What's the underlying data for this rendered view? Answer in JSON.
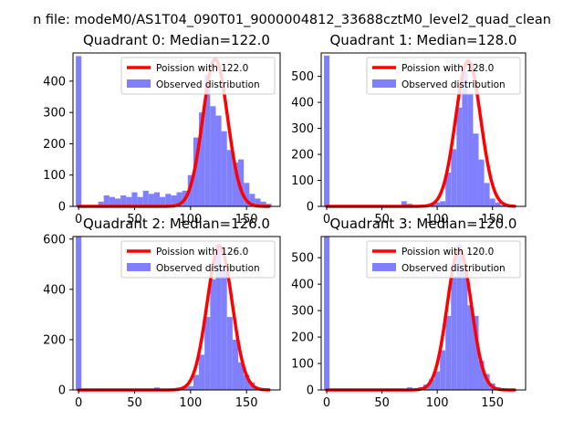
{
  "figure": {
    "suptitle": "n file: modeM0/AS1T04_090T01_9000004812_33688cztM0_level2_quad_clean"
  },
  "colors": {
    "curve": "#ff0000",
    "hist": "#8080ff",
    "axis": "#000000"
  },
  "chart_data": [
    {
      "type": "bar",
      "title": "Quadrant 0: Median=122.0",
      "xlim": [
        -5,
        180
      ],
      "ylim": [
        0,
        490
      ],
      "xticks": [
        0,
        50,
        100,
        150
      ],
      "yticks": [
        0,
        100,
        200,
        300,
        400
      ],
      "median": 122.0,
      "peak": 470,
      "zero_bar": 480,
      "poisson_label": "Poission with 122.0",
      "observed_label": "Observed distribution",
      "legend_position": "top-right",
      "bins": [
        [
          20,
          15
        ],
        [
          25,
          35
        ],
        [
          30,
          30
        ],
        [
          35,
          25
        ],
        [
          40,
          35
        ],
        [
          45,
          30
        ],
        [
          50,
          45
        ],
        [
          55,
          30
        ],
        [
          60,
          50
        ],
        [
          65,
          40
        ],
        [
          70,
          45
        ],
        [
          75,
          30
        ],
        [
          80,
          40
        ],
        [
          85,
          35
        ],
        [
          90,
          45
        ],
        [
          95,
          50
        ],
        [
          100,
          100
        ],
        [
          105,
          220
        ],
        [
          110,
          300
        ],
        [
          115,
          420
        ],
        [
          120,
          320
        ],
        [
          125,
          290
        ],
        [
          130,
          240
        ],
        [
          135,
          180
        ],
        [
          140,
          140
        ],
        [
          145,
          150
        ],
        [
          150,
          75
        ],
        [
          155,
          40
        ],
        [
          160,
          25
        ],
        [
          165,
          15
        ],
        [
          170,
          8
        ]
      ]
    },
    {
      "type": "bar",
      "title": "Quadrant 1: Median=128.0",
      "xlim": [
        -5,
        180
      ],
      "ylim": [
        0,
        590
      ],
      "xticks": [
        0,
        50,
        100,
        150
      ],
      "yticks": [
        0,
        100,
        200,
        300,
        400,
        500
      ],
      "median": 128.0,
      "peak": 560,
      "zero_bar": 580,
      "poisson_label": "Poission with 128.0",
      "observed_label": "Observed distribution",
      "legend_position": "top-right",
      "bins": [
        [
          70,
          20
        ],
        [
          75,
          10
        ],
        [
          80,
          5
        ],
        [
          85,
          5
        ],
        [
          90,
          5
        ],
        [
          95,
          10
        ],
        [
          100,
          15
        ],
        [
          105,
          20
        ],
        [
          110,
          130
        ],
        [
          115,
          220
        ],
        [
          120,
          380
        ],
        [
          125,
          520
        ],
        [
          130,
          430
        ],
        [
          135,
          280
        ],
        [
          140,
          180
        ],
        [
          145,
          90
        ],
        [
          150,
          30
        ],
        [
          155,
          15
        ],
        [
          160,
          5
        ]
      ]
    },
    {
      "type": "bar",
      "title": "Quadrant 2: Median=126.0",
      "xlim": [
        -5,
        180
      ],
      "ylim": [
        0,
        610
      ],
      "xticks": [
        0,
        50,
        100,
        150
      ],
      "yticks": [
        0,
        200,
        400,
        600
      ],
      "median": 126.0,
      "peak": 570,
      "zero_bar": 610,
      "poisson_label": "Poission with 126.0",
      "observed_label": "Observed distribution",
      "legend_position": "top-right",
      "bins": [
        [
          70,
          10
        ],
        [
          80,
          5
        ],
        [
          90,
          10
        ],
        [
          95,
          10
        ],
        [
          100,
          15
        ],
        [
          105,
          60
        ],
        [
          110,
          140
        ],
        [
          115,
          290
        ],
        [
          120,
          440
        ],
        [
          125,
          580
        ],
        [
          130,
          480
        ],
        [
          135,
          290
        ],
        [
          140,
          200
        ],
        [
          145,
          110
        ],
        [
          150,
          60
        ],
        [
          155,
          30
        ],
        [
          160,
          10
        ]
      ]
    },
    {
      "type": "bar",
      "title": "Quadrant 3: Median=120.0",
      "xlim": [
        -5,
        180
      ],
      "ylim": [
        0,
        580
      ],
      "xticks": [
        0,
        50,
        100,
        150
      ],
      "yticks": [
        0,
        100,
        200,
        300,
        400,
        500
      ],
      "median": 120.0,
      "peak": 530,
      "zero_bar": 580,
      "poisson_label": "Poission with 120.0",
      "observed_label": "Observed distribution",
      "legend_position": "top-right",
      "bins": [
        [
          75,
          10
        ],
        [
          80,
          5
        ],
        [
          85,
          10
        ],
        [
          90,
          20
        ],
        [
          95,
          40
        ],
        [
          100,
          70
        ],
        [
          105,
          150
        ],
        [
          110,
          280
        ],
        [
          115,
          430
        ],
        [
          120,
          550
        ],
        [
          125,
          450
        ],
        [
          130,
          320
        ],
        [
          135,
          280
        ],
        [
          140,
          110
        ],
        [
          145,
          60
        ],
        [
          150,
          25
        ],
        [
          155,
          10
        ],
        [
          160,
          5
        ]
      ]
    }
  ]
}
